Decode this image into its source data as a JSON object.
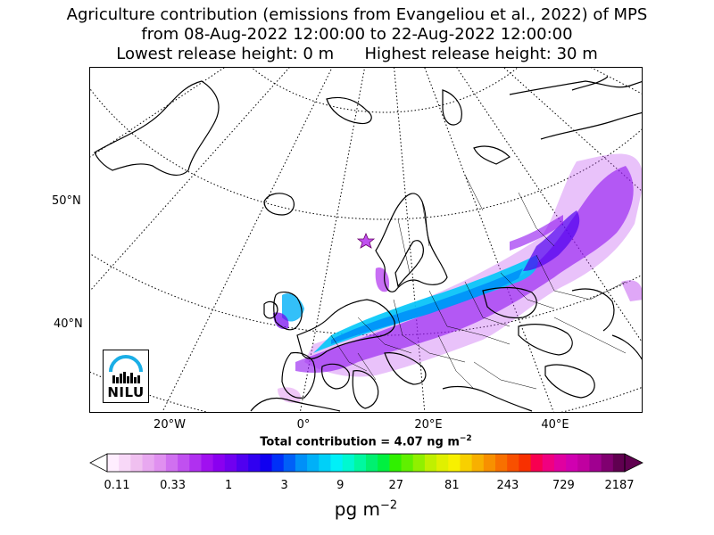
{
  "title": {
    "line1": "Agriculture contribution (emissions from Evangeliou et al., 2022) of MPS",
    "line2": "from 08-Aug-2022 12:00:00 to 22-Aug-2022 12:00:00",
    "line3": "Lowest release height: 0 m      Highest release height: 30 m"
  },
  "map": {
    "lat_labels": [
      "50°N",
      "40°N"
    ],
    "lon_labels": [
      "20°W",
      "0°",
      "20°E",
      "40°E"
    ],
    "receptor_marker": "star",
    "logo_text": "NILU",
    "colors": {
      "ocean": "#ffffff",
      "land": "#ffffff",
      "coast": "#000000",
      "grid": "#000000",
      "logo_arc": "#1aaee6"
    }
  },
  "total": {
    "prefix": "Total contribution = 4.07 ng m",
    "exponent": "−2"
  },
  "colorbar": {
    "ticks": [
      "0.11",
      "0.33",
      "1",
      "3",
      "9",
      "27",
      "81",
      "243",
      "729",
      "2187"
    ],
    "unit_base": "pg m",
    "unit_exponent": "−2",
    "colors": [
      "#ffeeff",
      "#f8d8f8",
      "#f0c0f0",
      "#e8a8f0",
      "#e090f0",
      "#d070f0",
      "#c050f0",
      "#b030f0",
      "#a010f0",
      "#8a00f0",
      "#7000f0",
      "#5000f0",
      "#3000f0",
      "#1000f0",
      "#0030f8",
      "#0060f8",
      "#0090f8",
      "#00b0f8",
      "#00d0f8",
      "#00f0f8",
      "#00f8d0",
      "#00f8a0",
      "#00f070",
      "#00f040",
      "#30f000",
      "#60f000",
      "#90f000",
      "#c0f000",
      "#e0f000",
      "#f8f000",
      "#f8d000",
      "#f8b000",
      "#f89000",
      "#f87000",
      "#f85000",
      "#f83000",
      "#f80050",
      "#f00080",
      "#e000a0",
      "#d000b0",
      "#c000a0",
      "#a00090",
      "#800070",
      "#600050"
    ]
  }
}
